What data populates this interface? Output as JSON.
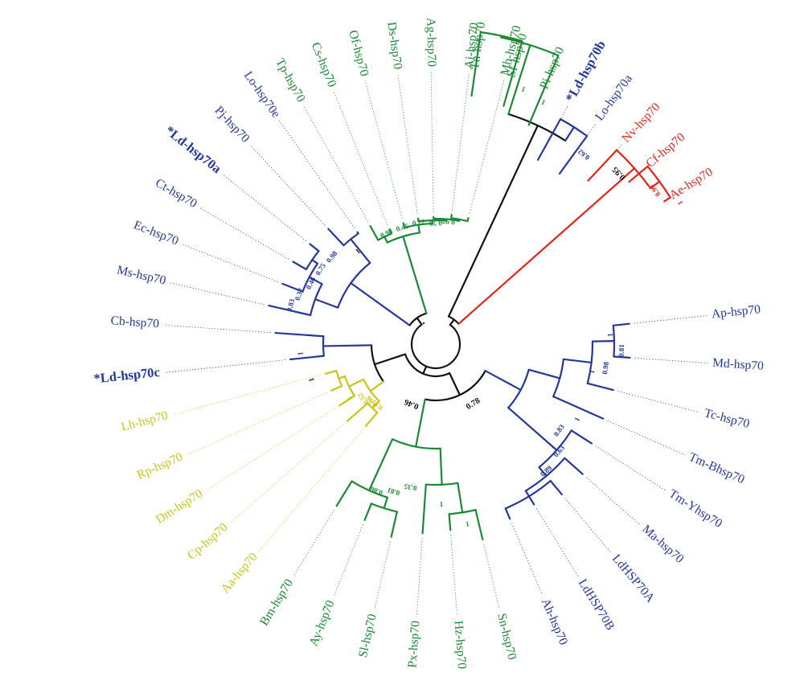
{
  "colors": {
    "blue": "#23389a",
    "green": "#1a8a34",
    "yellow": "#c9c419",
    "red": "#e0251b",
    "black": "#111111"
  },
  "leaves": [
    {
      "label": "Tn-hsp70",
      "color": "green"
    },
    {
      "label": "Sf-hsp70",
      "color": "green"
    },
    {
      "label": "Pi-hsp70",
      "color": "green"
    },
    {
      "label": "*Ld-hsp70b",
      "color": "blue",
      "bold": true
    },
    {
      "label": "Lo-hsp70a",
      "color": "blue"
    },
    {
      "label": "Nv-hsp70",
      "color": "red"
    },
    {
      "label": "Cf-hsp70",
      "color": "red"
    },
    {
      "label": "Ae-hsp70",
      "color": "red"
    },
    {
      "label": "Ap-hsp70",
      "color": "blue"
    },
    {
      "label": "Md-hsp70",
      "color": "blue"
    },
    {
      "label": "Tc-hsp70",
      "color": "blue"
    },
    {
      "label": "Tm-Bhsp70",
      "color": "blue"
    },
    {
      "label": "Tm-Yhsp70",
      "color": "blue"
    },
    {
      "label": "Ma-hsp70",
      "color": "blue"
    },
    {
      "label": "LdHSP70A",
      "color": "blue"
    },
    {
      "label": "LdHSP70B",
      "color": "blue"
    },
    {
      "label": "Ah-hsp70",
      "color": "blue"
    },
    {
      "label": "Sn-hsp70",
      "color": "green"
    },
    {
      "label": "Hz-hsp70",
      "color": "green"
    },
    {
      "label": "Px-hsp70",
      "color": "green"
    },
    {
      "label": "Sl-hsp70",
      "color": "green"
    },
    {
      "label": "Ay-hsp70",
      "color": "green"
    },
    {
      "label": "Bm-hsp70",
      "color": "green"
    },
    {
      "label": "Aa-hsp70",
      "color": "yellow"
    },
    {
      "label": "Cp-hsp70",
      "color": "yellow"
    },
    {
      "label": "Dm-hsp70",
      "color": "yellow"
    },
    {
      "label": "Rp-hsp70",
      "color": "yellow"
    },
    {
      "label": "Lh-hsp70",
      "color": "yellow"
    },
    {
      "label": "*Ld-hsp70c",
      "color": "blue",
      "bold": true
    },
    {
      "label": "Cb-hsp70",
      "color": "blue"
    },
    {
      "label": "Ms-hsp70",
      "color": "blue"
    },
    {
      "label": "Ec-hsp70",
      "color": "blue"
    },
    {
      "label": "Ct-hsp70",
      "color": "blue"
    },
    {
      "label": "*Ld-hsp70a",
      "color": "blue",
      "bold": true
    },
    {
      "label": "Pj-hsp70",
      "color": "blue"
    },
    {
      "label": "Lo-hsp70e",
      "color": "blue"
    },
    {
      "label": "Tp-hsp70",
      "color": "green"
    },
    {
      "label": "Cs-hsp70",
      "color": "green"
    },
    {
      "label": "Of-hsp70",
      "color": "green"
    },
    {
      "label": "Ds-hsp70",
      "color": "green"
    },
    {
      "label": "Ag-hsp70",
      "color": "green"
    },
    {
      "label": "Ai-hsp70",
      "color": "green"
    },
    {
      "label": "Mb-hsp70",
      "color": "green"
    }
  ],
  "support_values": [
    {
      "text": "0.62",
      "color": "blue"
    },
    {
      "text": "0.95",
      "color": "black",
      "big": true
    },
    {
      "text": "0.99",
      "color": "red"
    },
    {
      "text": "1",
      "color": "red"
    },
    {
      "text": "1",
      "color": "green"
    },
    {
      "text": "1",
      "color": "green"
    },
    {
      "text": "1",
      "color": "blue"
    },
    {
      "text": "0.81",
      "color": "blue"
    },
    {
      "text": "0.98",
      "color": "blue"
    },
    {
      "text": "1",
      "color": "blue"
    },
    {
      "text": "1",
      "color": "blue"
    },
    {
      "text": "0.83",
      "color": "blue"
    },
    {
      "text": "0.63",
      "color": "blue"
    },
    {
      "text": "0.89",
      "color": "blue"
    },
    {
      "text": "0.78",
      "color": "black",
      "big": true
    },
    {
      "text": "0.46",
      "color": "black",
      "big": true
    },
    {
      "text": "1",
      "color": "green"
    },
    {
      "text": "1",
      "color": "green"
    },
    {
      "text": "0.35",
      "color": "green"
    },
    {
      "text": "0.81",
      "color": "green"
    },
    {
      "text": "0.86",
      "color": "green"
    },
    {
      "text": "1",
      "color": "yellow"
    },
    {
      "text": "0.52",
      "color": "yellow"
    },
    {
      "text": "0.96",
      "color": "yellow"
    },
    {
      "text": "0.97",
      "color": "yellow"
    },
    {
      "text": "1",
      "color": "black"
    },
    {
      "text": "1",
      "color": "blue"
    },
    {
      "text": "0.83",
      "color": "blue"
    },
    {
      "text": "0.37",
      "color": "blue"
    },
    {
      "text": "0.46",
      "color": "blue"
    },
    {
      "text": "0.75",
      "color": "blue"
    },
    {
      "text": "0.98",
      "color": "blue"
    },
    {
      "text": "1",
      "color": "black"
    },
    {
      "text": "0.98",
      "color": "green"
    },
    {
      "text": "0.45",
      "color": "green"
    },
    {
      "text": "0.22",
      "color": "green"
    },
    {
      "text": "0.75",
      "color": "green"
    },
    {
      "text": "0.97",
      "color": "green"
    }
  ]
}
